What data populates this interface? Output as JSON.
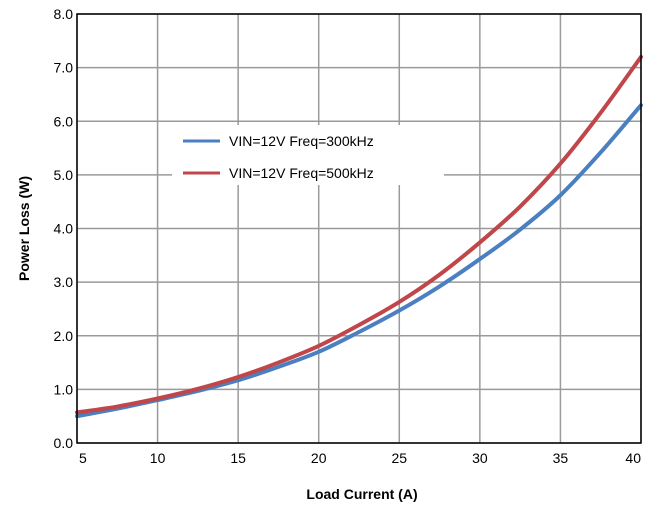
{
  "chart_data": {
    "type": "line",
    "title": "",
    "xlabel": "Load Current (A)",
    "ylabel": "Power Loss (W)",
    "xlim": [
      5,
      40
    ],
    "ylim": [
      0,
      8
    ],
    "x_ticks": [
      "5",
      "10",
      "15",
      "20",
      "25",
      "30",
      "35",
      "40"
    ],
    "y_ticks": [
      "0.0",
      "1.0",
      "2.0",
      "3.0",
      "4.0",
      "5.0",
      "6.0",
      "7.0",
      "8.0"
    ],
    "grid": true,
    "legend_position": "upper-left-center",
    "series": [
      {
        "name": "VIN=12V Freq=300kHz",
        "color": "#4a7fc1",
        "x": [
          5,
          7.5,
          10,
          12.5,
          15,
          17.5,
          20,
          22.5,
          25,
          27.5,
          30,
          32.5,
          35,
          37.5,
          40
        ],
        "y": [
          0.5,
          0.64,
          0.8,
          0.97,
          1.17,
          1.42,
          1.7,
          2.07,
          2.47,
          2.92,
          3.43,
          3.98,
          4.62,
          5.42,
          6.3
        ]
      },
      {
        "name": "VIN=12V Freq=500kHz",
        "color": "#c0464a",
        "x": [
          5,
          7.5,
          10,
          12.5,
          15,
          17.5,
          20,
          22.5,
          25,
          27.5,
          30,
          32.5,
          35,
          37.5,
          40
        ],
        "y": [
          0.57,
          0.68,
          0.83,
          1.01,
          1.23,
          1.5,
          1.81,
          2.2,
          2.63,
          3.14,
          3.74,
          4.41,
          5.21,
          6.16,
          7.2
        ]
      }
    ]
  }
}
